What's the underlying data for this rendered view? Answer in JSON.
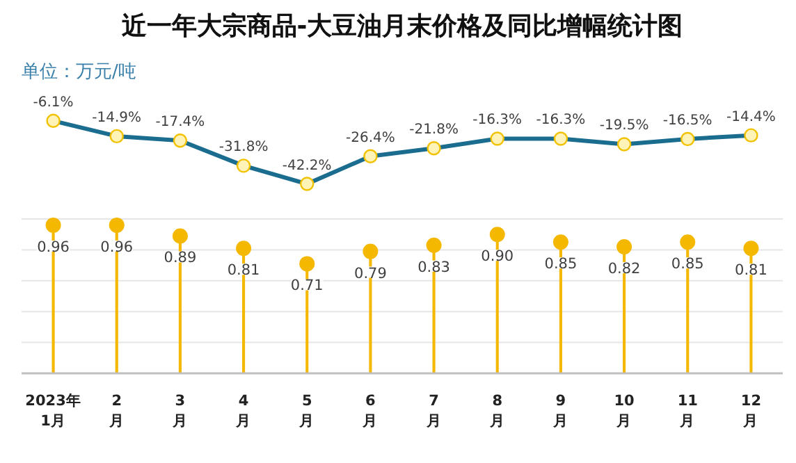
{
  "chart_data": [
    {
      "type": "line",
      "title": "近一年大宗商品-大豆油月末价格及同比增幅统计图",
      "annotations": [
        "单位：万元/吨"
      ],
      "categories": [
        null,
        null,
        null,
        null,
        null,
        null,
        null,
        null,
        null,
        null,
        null,
        null
      ],
      "color": "#1b6d8f",
      "marker": "circle",
      "values": [
        -6.1,
        -14.9,
        -17.4,
        -31.8,
        -42.2,
        -26.4,
        -21.8,
        -16.3,
        -16.3,
        -19.5,
        -16.5,
        -14.4
      ],
      "value_labels": [
        "-6.1%",
        "-14.9%",
        "-17.4%",
        "-31.8%",
        "-42.2%",
        "-26.4%",
        "-21.8%",
        "-16.3%",
        "-16.3%",
        "-19.5%",
        "-16.5%",
        "-14.4%"
      ],
      "tick_labels": false
    },
    {
      "type": "lollipop",
      "categories": [
        "2023年\n1月",
        "2\n月",
        "3\n月",
        "4\n月",
        "5\n月",
        "6\n月",
        "7\n月",
        "8\n月",
        "9\n月",
        "10\n月",
        "11\n月",
        "12\n月"
      ],
      "color": "#f5b800",
      "values": [
        0.96,
        0.96,
        0.89,
        0.81,
        0.71,
        0.79,
        0.83,
        0.9,
        0.85,
        0.82,
        0.85,
        0.81
      ],
      "value_labels": [
        "0.96",
        "0.96",
        "0.89",
        "0.81",
        "0.71",
        "0.79",
        "0.83",
        "0.90",
        "0.85",
        "0.82",
        "0.85",
        "0.81"
      ],
      "ylim": [
        0,
        1.0
      ],
      "yticks": [
        {
          "value": 0,
          "label": null
        },
        {
          "value": 0.2,
          "label": null
        },
        {
          "value": 0.4,
          "label": null
        },
        {
          "value": 0.6,
          "label": null
        },
        {
          "value": 0.8,
          "label": null
        },
        {
          "value": 1.0,
          "label": null
        }
      ],
      "tick_labels": "x",
      "grid": "y"
    }
  ]
}
